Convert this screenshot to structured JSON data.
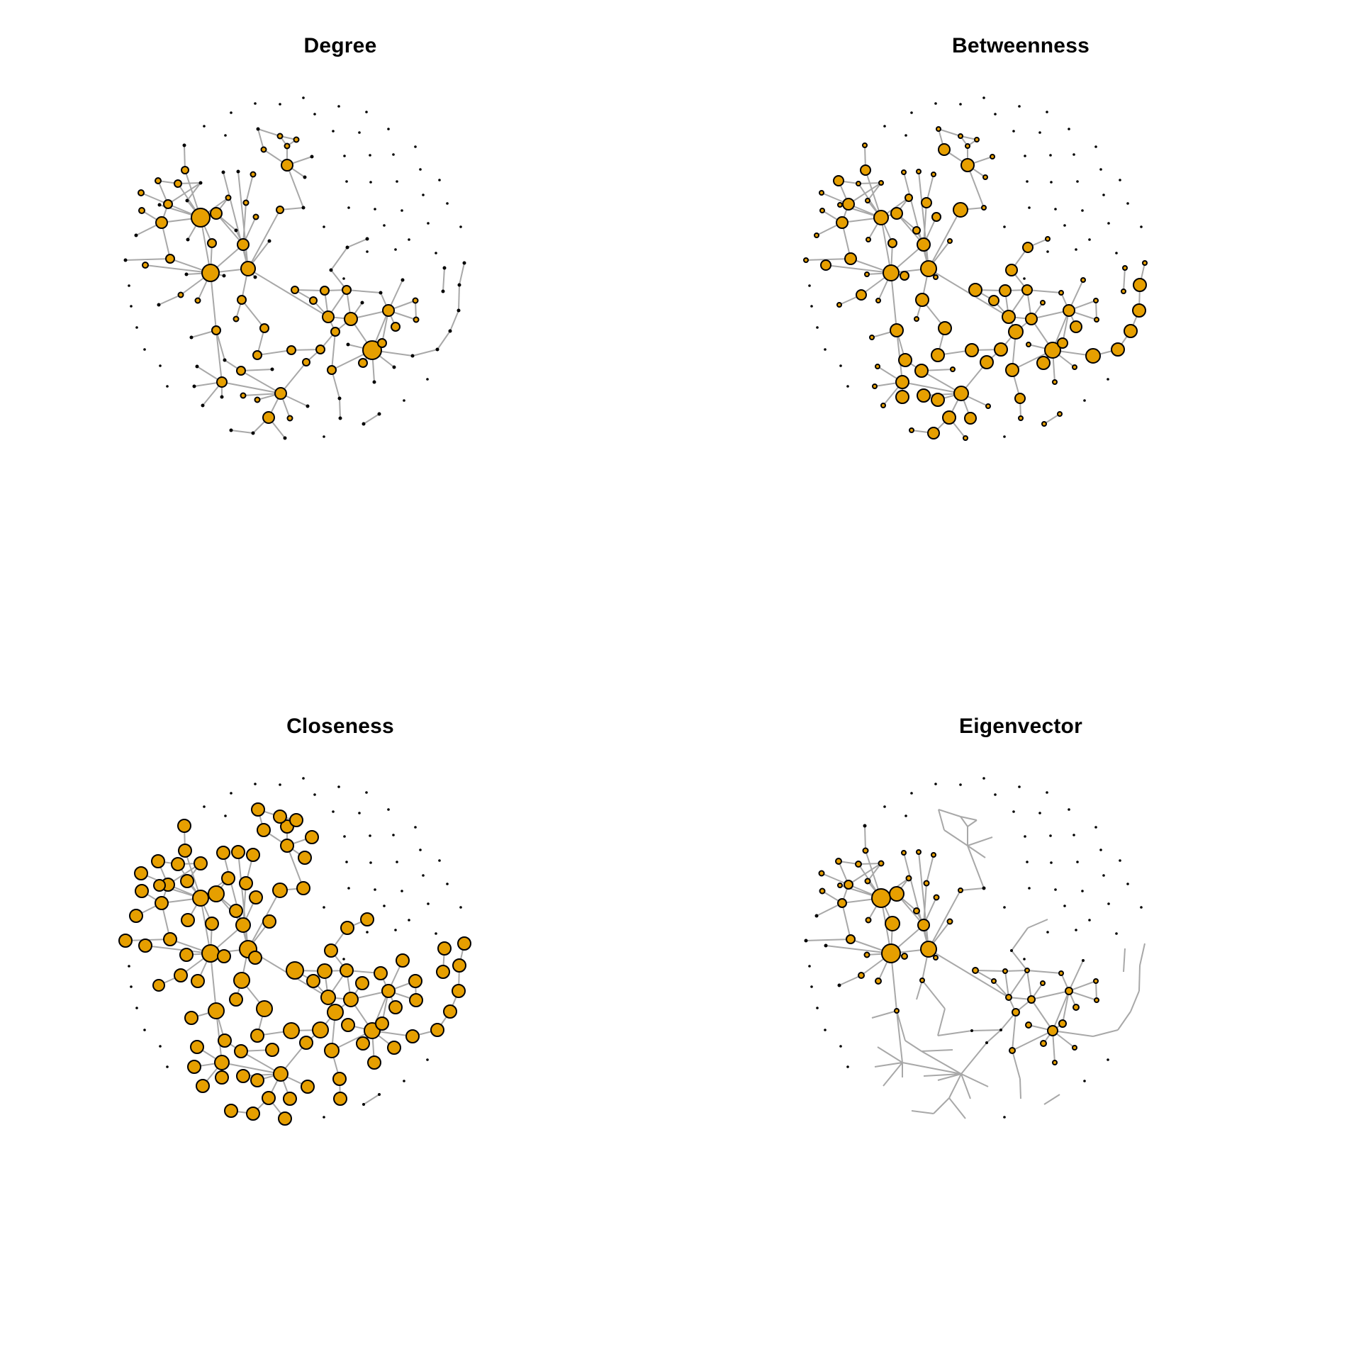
{
  "node_color": "#E69F00",
  "edge_color": "#A8A8A8",
  "outline_color": "#000000",
  "panels": [
    {
      "title": "Degree"
    },
    {
      "title": "Betweenness"
    },
    {
      "title": "Closeness"
    },
    {
      "title": "Eigenvector"
    }
  ]
}
